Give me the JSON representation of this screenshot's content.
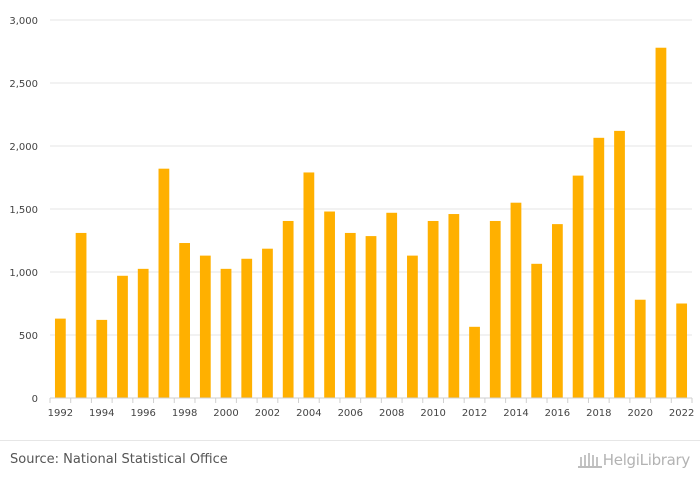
{
  "chart_data": {
    "type": "bar",
    "categories": [
      "1992",
      "1993",
      "1994",
      "1995",
      "1996",
      "1997",
      "1998",
      "1999",
      "2000",
      "2001",
      "2002",
      "2003",
      "2004",
      "2005",
      "2006",
      "2007",
      "2008",
      "2009",
      "2010",
      "2011",
      "2012",
      "2013",
      "2014",
      "2015",
      "2016",
      "2017",
      "2018",
      "2019",
      "2020",
      "2021",
      "2022"
    ],
    "values": [
      630,
      1310,
      620,
      970,
      1025,
      1820,
      1230,
      1130,
      1025,
      1105,
      1185,
      1405,
      1790,
      1480,
      1310,
      1285,
      1470,
      1130,
      1405,
      1460,
      565,
      1405,
      1550,
      1065,
      1380,
      1765,
      2065,
      2120,
      780,
      2780,
      750
    ],
    "x_tick_labels": [
      "1992",
      "1994",
      "1996",
      "1998",
      "2000",
      "2002",
      "2004",
      "2006",
      "2008",
      "2010",
      "2012",
      "2014",
      "2016",
      "2018",
      "2020",
      "2022"
    ],
    "y_ticks": [
      0,
      500,
      1000,
      1500,
      2000,
      2500,
      3000
    ],
    "y_tick_labels": [
      "0",
      "500",
      "1,000",
      "1,500",
      "2,000",
      "2,500",
      "3,000"
    ],
    "ylim": [
      0,
      3000
    ],
    "grid": true,
    "bar_color": "#FFB000",
    "title": "",
    "xlabel": "",
    "ylabel": ""
  },
  "footer": {
    "source": "Source: National Statistical Office",
    "logo_text": "HelgiLibrary"
  }
}
